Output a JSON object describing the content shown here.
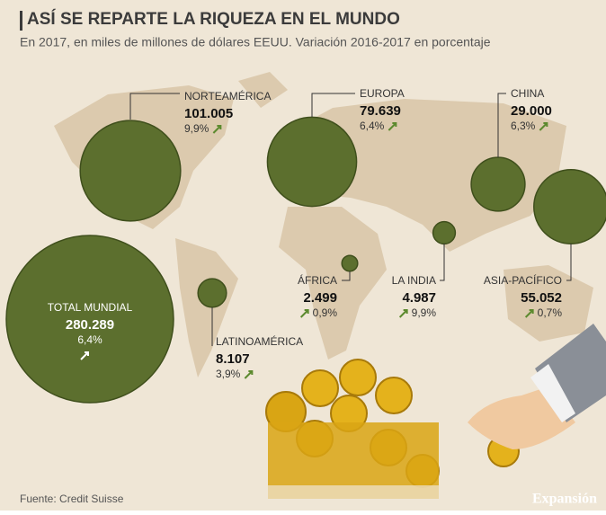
{
  "chart_data": {
    "type": "bubble-map",
    "title": "ASÍ SE REPARTE LA RIQUEZA EN EL MUNDO",
    "subtitle": "En 2017, en miles de millones de dólares EEUU. Variación 2016-2017 en porcentaje",
    "categories": [
      "NORTEAMÉRICA",
      "EUROPA",
      "CHINA",
      "ASIA-PACÍFICO",
      "LA INDIA",
      "ÁFRICA",
      "LATINOAMÉRICA",
      "TOTAL MUNDIAL"
    ],
    "values": [
      101005,
      79639,
      29000,
      55052,
      4987,
      2499,
      8107,
      280289
    ],
    "value_labels": [
      "101.005",
      "79.639",
      "29.000",
      "55.052",
      "4.987",
      "2.499",
      "8.107",
      "280.289"
    ],
    "changes": [
      9.9,
      6.4,
      6.3,
      0.7,
      9.9,
      0.9,
      3.9,
      6.4
    ],
    "change_labels": [
      "9,9%",
      "6,4%",
      "6,3%",
      "0,7%",
      "9,9%",
      "0,9%",
      "3,9%",
      "6,4%"
    ],
    "color": "#5c6f2e",
    "source": "Fuente: Credit Suisse"
  },
  "logo": "Expansión"
}
